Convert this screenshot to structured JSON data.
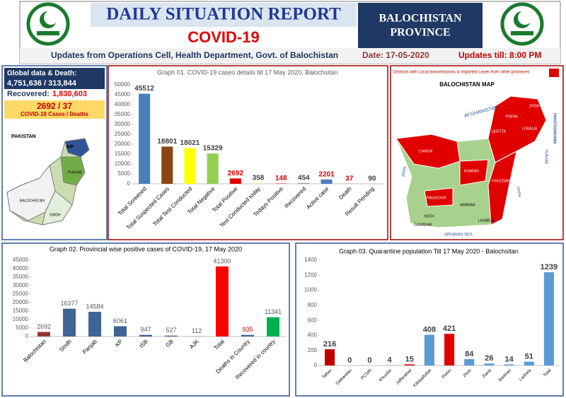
{
  "header": {
    "title": "DAILY SITUATION REPORT",
    "subtitle": "COVID-19",
    "province_line1": "BALOCHISTAN",
    "province_line2": "PROVINCE",
    "source": "Updates from Operations Cell, Health Department, Govt. of Balochistan",
    "date": "Date: 17-05-2020",
    "updated": "Updates till: 8:00 PM"
  },
  "left_panel": {
    "global_label": "Global data & Death:",
    "global_value": "4,751,636 / 313,844",
    "recovered_label": "Recovered: ",
    "recovered_value": "1,830,603",
    "province_value": "2692 / 37",
    "province_caption": "COVID-19 Cases / Deaths",
    "map_labels": [
      "PAKISTAN",
      "KP",
      "PUNJAB",
      "BALOCHISTAN",
      "SINDH"
    ]
  },
  "map_panel": {
    "legend": "Districts with Local transmissions & imported cases from other provinces",
    "title": "BALOCHISTAN MAP",
    "labels": [
      "AFGHANISTAN",
      "IRAN",
      "ARABIAN SEA",
      "PAKHTOONKHWA",
      "PUNJAB",
      "SINDH",
      "ZHOB",
      "QUETTA",
      "PISHIN",
      "LORALAI",
      "KHARAN",
      "CHAGHI",
      "PANJGOOR",
      "KECH",
      "GAWADAR",
      "AWARAN",
      "KHUZDAR",
      "LASBELA"
    ]
  },
  "chart_data": [
    {
      "type": "bar",
      "title": "Graph 01. COVID-19 cases details till 17 May 2020, Balochsitan",
      "categories": [
        "Total Screened",
        "Total Suspected Cases",
        "Total Test Conducted",
        "Total Negative",
        "Total Positive",
        "Test Conducted today",
        "Todays Positive",
        "Recovered",
        "Active case",
        "Death",
        "Result Pending"
      ],
      "values": [
        45512,
        18801,
        18021,
        15329,
        2692,
        358,
        148,
        454,
        2201,
        37,
        90
      ],
      "colors": [
        "#4a7ebb",
        "#8b4513",
        "#ffff00",
        "#92d050",
        "#e00000",
        "#ffe699",
        "#e00000",
        "#a5a5a5",
        "#4a7ebb",
        "#c00000",
        "#a5a5a5"
      ],
      "label_colors": [
        "#404040",
        "#404040",
        "#404040",
        "#404040",
        "#e00000",
        "#404040",
        "#e00000",
        "#404040",
        "#e00000",
        "#e00000",
        "#404040"
      ],
      "ylim": [
        0,
        50000
      ],
      "yticks": [
        0,
        5000,
        10000,
        15000,
        20000,
        25000,
        30000,
        35000,
        40000,
        45000,
        50000
      ]
    },
    {
      "type": "bar",
      "title": "Graph 02. Provincial wise positive cases of COVID-19, 17 May  2020",
      "categories": [
        "Balochistan",
        "Sindh",
        "Panjab",
        "KP",
        "ISB",
        "GB",
        "AJK",
        "Total",
        "Deaths in Country",
        "Recovered in country"
      ],
      "values": [
        2692,
        16377,
        14584,
        6061,
        947,
        527,
        112,
        41300,
        935,
        11341
      ],
      "colors": [
        "#943634",
        "#3f6496",
        "#3f6496",
        "#3f6496",
        "#3f6496",
        "#3f6496",
        "#3f6496",
        "#ff0000",
        "#3f6496",
        "#00b050"
      ],
      "label_colors": [
        "#595959",
        "#595959",
        "#595959",
        "#595959",
        "#595959",
        "#595959",
        "#595959",
        "#595959",
        "#c00000",
        "#595959"
      ],
      "ylim": [
        0,
        45000
      ],
      "yticks": [
        0,
        5000,
        10000,
        15000,
        20000,
        25000,
        30000,
        35000,
        40000,
        45000
      ]
    },
    {
      "type": "bar",
      "title": "Graph 03. Quarantine population Till 17 May 2020 - Balochsitan",
      "categories": [
        "Taftan",
        "Dalbandan",
        "PCSIR",
        "Khuzdar",
        "Jaffarabad",
        "Killasaifullah",
        "Pishin",
        "Zhob",
        "Ziarat",
        "Barkhan",
        "Lasbela",
        "Total"
      ],
      "values": [
        216,
        0,
        0,
        4,
        15,
        408,
        421,
        84,
        26,
        14,
        51,
        1239
      ],
      "colors": [
        "#c00000",
        "#5b9bd5",
        "#5b9bd5",
        "#5b9bd5",
        "#e00000",
        "#5b9bd5",
        "#e00000",
        "#5b9bd5",
        "#5b9bd5",
        "#5b9bd5",
        "#5b9bd5",
        "#5b9bd5"
      ],
      "label_colors": [
        "#404040",
        "#404040",
        "#404040",
        "#404040",
        "#404040",
        "#404040",
        "#404040",
        "#404040",
        "#404040",
        "#404040",
        "#404040",
        "#404040"
      ],
      "ylim": [
        0,
        1400
      ],
      "yticks": [
        0,
        200,
        400,
        600,
        800,
        1000,
        1200,
        1400
      ]
    }
  ]
}
